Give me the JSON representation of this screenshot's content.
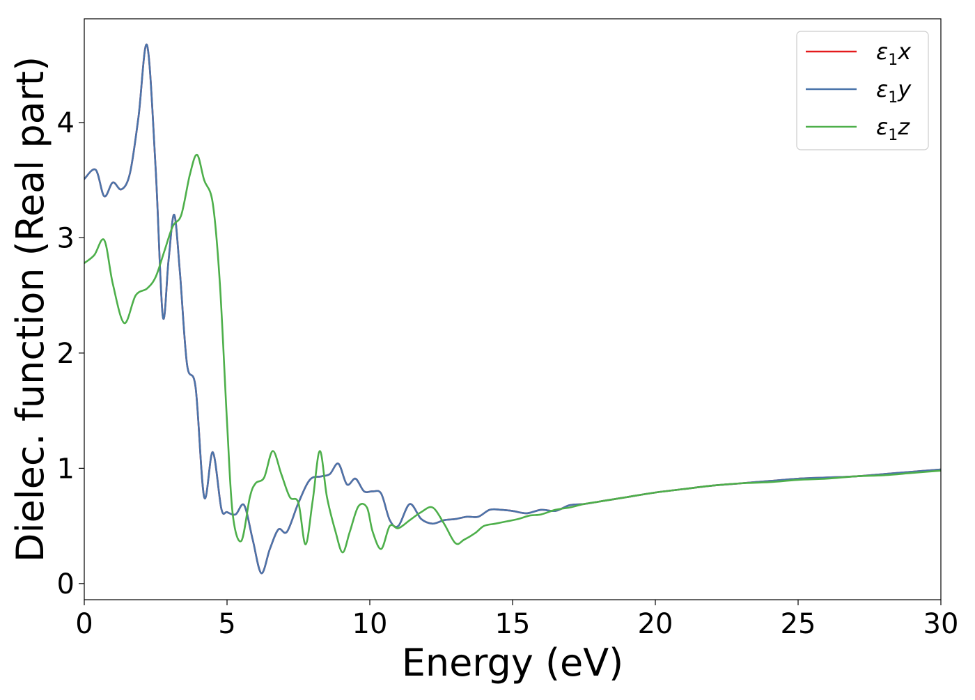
{
  "chart_data": {
    "type": "line",
    "xlabel": "Energy (eV)",
    "ylabel": "Dielec. function (Real part)",
    "xlim": [
      0,
      30
    ],
    "ylim": [
      -0.14,
      4.9
    ],
    "xticks": [
      0,
      5,
      10,
      15,
      20,
      25,
      30
    ],
    "yticks": [
      0,
      1,
      2,
      3,
      4
    ],
    "grid": false,
    "legend_position": "top-right",
    "series": [
      {
        "name": "ε1x",
        "label_main": "ε",
        "label_sub": "1",
        "label_tail": "x",
        "color": "#e41a1c",
        "x": [
          0,
          0.4,
          0.7,
          1.0,
          1.3,
          1.6,
          1.9,
          2.2,
          2.5,
          2.75,
          2.95,
          3.15,
          3.35,
          3.6,
          3.9,
          4.2,
          4.5,
          4.8,
          5.0,
          5.3,
          5.6,
          5.9,
          6.2,
          6.5,
          6.8,
          7.1,
          7.5,
          7.9,
          8.3,
          8.6,
          8.9,
          9.2,
          9.5,
          9.8,
          10.1,
          10.4,
          10.7,
          11.0,
          11.4,
          11.8,
          12.2,
          12.6,
          13.0,
          13.4,
          13.8,
          14.2,
          14.6,
          15.0,
          15.5,
          16.0,
          16.5,
          17.0,
          17.5,
          18.0,
          18.5,
          19.0,
          20.0,
          21.0,
          22.0,
          23.0,
          24.0,
          25.0,
          26.0,
          27.0,
          28.0,
          29.0,
          30.0
        ],
        "y": [
          3.51,
          3.59,
          3.36,
          3.48,
          3.42,
          3.56,
          4.05,
          4.67,
          3.6,
          2.32,
          2.8,
          3.2,
          2.7,
          1.9,
          1.7,
          0.75,
          1.14,
          0.65,
          0.62,
          0.6,
          0.68,
          0.38,
          0.09,
          0.3,
          0.47,
          0.45,
          0.7,
          0.9,
          0.93,
          0.95,
          1.04,
          0.86,
          0.91,
          0.8,
          0.8,
          0.78,
          0.55,
          0.5,
          0.69,
          0.56,
          0.52,
          0.55,
          0.56,
          0.58,
          0.58,
          0.64,
          0.64,
          0.63,
          0.61,
          0.64,
          0.63,
          0.68,
          0.69,
          0.71,
          0.73,
          0.75,
          0.79,
          0.82,
          0.85,
          0.87,
          0.89,
          0.91,
          0.92,
          0.93,
          0.95,
          0.97,
          0.99
        ]
      },
      {
        "name": "ε1y",
        "label_main": "ε",
        "label_sub": "1",
        "label_tail": "y",
        "color": "#4a74aa",
        "x": [
          0,
          0.4,
          0.7,
          1.0,
          1.3,
          1.6,
          1.9,
          2.2,
          2.5,
          2.75,
          2.95,
          3.15,
          3.35,
          3.6,
          3.9,
          4.2,
          4.5,
          4.8,
          5.0,
          5.3,
          5.6,
          5.9,
          6.2,
          6.5,
          6.8,
          7.1,
          7.5,
          7.9,
          8.3,
          8.6,
          8.9,
          9.2,
          9.5,
          9.8,
          10.1,
          10.4,
          10.7,
          11.0,
          11.4,
          11.8,
          12.2,
          12.6,
          13.0,
          13.4,
          13.8,
          14.2,
          14.6,
          15.0,
          15.5,
          16.0,
          16.5,
          17.0,
          17.5,
          18.0,
          18.5,
          19.0,
          20.0,
          21.0,
          22.0,
          23.0,
          24.0,
          25.0,
          26.0,
          27.0,
          28.0,
          29.0,
          30.0
        ],
        "y": [
          3.51,
          3.59,
          3.36,
          3.48,
          3.42,
          3.56,
          4.05,
          4.67,
          3.6,
          2.32,
          2.8,
          3.2,
          2.7,
          1.9,
          1.7,
          0.75,
          1.14,
          0.65,
          0.62,
          0.6,
          0.68,
          0.38,
          0.09,
          0.3,
          0.47,
          0.45,
          0.7,
          0.9,
          0.93,
          0.95,
          1.04,
          0.86,
          0.91,
          0.8,
          0.8,
          0.78,
          0.55,
          0.5,
          0.69,
          0.56,
          0.52,
          0.55,
          0.56,
          0.58,
          0.58,
          0.64,
          0.64,
          0.63,
          0.61,
          0.64,
          0.63,
          0.68,
          0.69,
          0.71,
          0.73,
          0.75,
          0.79,
          0.82,
          0.85,
          0.87,
          0.89,
          0.91,
          0.92,
          0.93,
          0.95,
          0.97,
          0.99
        ]
      },
      {
        "name": "ε1z",
        "label_main": "ε",
        "label_sub": "1",
        "label_tail": "z",
        "color": "#4daf4a",
        "x": [
          0,
          0.35,
          0.7,
          1.0,
          1.4,
          1.8,
          2.2,
          2.5,
          2.8,
          3.1,
          3.4,
          3.7,
          3.95,
          4.2,
          4.5,
          4.75,
          5.0,
          5.2,
          5.5,
          5.8,
          6.0,
          6.3,
          6.6,
          6.9,
          7.2,
          7.5,
          7.75,
          8.0,
          8.25,
          8.5,
          8.8,
          9.05,
          9.3,
          9.6,
          9.9,
          10.1,
          10.4,
          10.7,
          11.0,
          11.4,
          11.8,
          12.2,
          12.6,
          13.0,
          13.3,
          13.7,
          14.0,
          14.4,
          14.8,
          15.2,
          15.6,
          16.0,
          16.5,
          17.0,
          17.5,
          18.0,
          18.5,
          19.0,
          20.0,
          21.0,
          22.0,
          23.0,
          24.0,
          25.0,
          26.0,
          27.0,
          28.0,
          29.0,
          30.0
        ],
        "y": [
          2.78,
          2.85,
          2.98,
          2.6,
          2.26,
          2.5,
          2.56,
          2.66,
          2.88,
          3.1,
          3.2,
          3.55,
          3.72,
          3.5,
          3.3,
          2.6,
          1.4,
          0.6,
          0.37,
          0.75,
          0.87,
          0.92,
          1.15,
          0.95,
          0.75,
          0.7,
          0.34,
          0.72,
          1.15,
          0.75,
          0.45,
          0.27,
          0.45,
          0.67,
          0.66,
          0.45,
          0.3,
          0.5,
          0.48,
          0.55,
          0.62,
          0.66,
          0.52,
          0.35,
          0.38,
          0.44,
          0.5,
          0.52,
          0.54,
          0.56,
          0.59,
          0.6,
          0.64,
          0.66,
          0.69,
          0.71,
          0.73,
          0.75,
          0.79,
          0.82,
          0.85,
          0.87,
          0.88,
          0.9,
          0.91,
          0.93,
          0.94,
          0.96,
          0.98
        ]
      }
    ]
  }
}
